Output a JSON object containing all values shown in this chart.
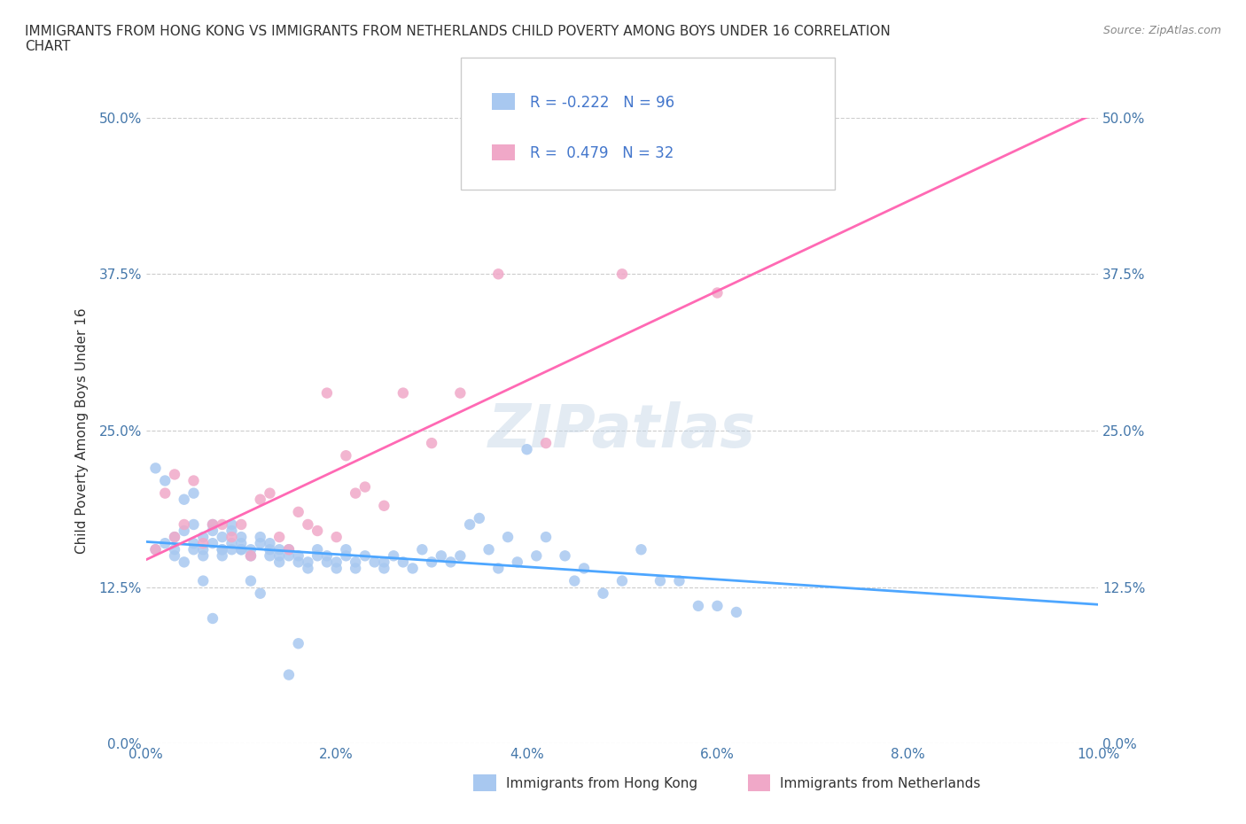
{
  "title": "IMMIGRANTS FROM HONG KONG VS IMMIGRANTS FROM NETHERLANDS CHILD POVERTY AMONG BOYS UNDER 16 CORRELATION\nCHART",
  "source_text": "Source: ZipAtlas.com",
  "ylabel": "Child Poverty Among Boys Under 16",
  "xlabel": "",
  "xlim": [
    0.0,
    0.1
  ],
  "ylim": [
    0.0,
    0.5
  ],
  "yticks": [
    0.0,
    0.125,
    0.25,
    0.375,
    0.5
  ],
  "ytick_labels": [
    "0.0%",
    "12.5%",
    "25.0%",
    "37.5%",
    "50.0%"
  ],
  "xticks": [
    0.0,
    0.02,
    0.04,
    0.06,
    0.08,
    0.1
  ],
  "xtick_labels": [
    "0.0%",
    "2.0%",
    "4.0%",
    "6.0%",
    "8.0%",
    "10.0%"
  ],
  "hk_color": "#a8c8f0",
  "nl_color": "#f0a8c8",
  "hk_line_color": "#4da6ff",
  "nl_line_color": "#ff69b4",
  "hk_r": -0.222,
  "hk_n": 96,
  "nl_r": 0.479,
  "nl_n": 32,
  "watermark": "ZIPatlas",
  "legend_hk": "Immigrants from Hong Kong",
  "legend_nl": "Immigrants from Netherlands",
  "hk_scatter_x": [
    0.001,
    0.002,
    0.003,
    0.003,
    0.004,
    0.004,
    0.005,
    0.005,
    0.005,
    0.006,
    0.006,
    0.006,
    0.007,
    0.007,
    0.007,
    0.008,
    0.008,
    0.008,
    0.009,
    0.009,
    0.009,
    0.01,
    0.01,
    0.01,
    0.011,
    0.011,
    0.012,
    0.012,
    0.013,
    0.013,
    0.014,
    0.014,
    0.015,
    0.015,
    0.016,
    0.016,
    0.017,
    0.017,
    0.018,
    0.018,
    0.019,
    0.019,
    0.02,
    0.02,
    0.021,
    0.021,
    0.022,
    0.022,
    0.023,
    0.024,
    0.025,
    0.025,
    0.026,
    0.027,
    0.028,
    0.029,
    0.03,
    0.031,
    0.032,
    0.033,
    0.034,
    0.035,
    0.036,
    0.037,
    0.038,
    0.039,
    0.04,
    0.041,
    0.042,
    0.044,
    0.045,
    0.046,
    0.048,
    0.05,
    0.052,
    0.054,
    0.056,
    0.058,
    0.06,
    0.062,
    0.001,
    0.002,
    0.003,
    0.004,
    0.005,
    0.006,
    0.007,
    0.008,
    0.009,
    0.01,
    0.011,
    0.012,
    0.013,
    0.014,
    0.015,
    0.016
  ],
  "hk_scatter_y": [
    0.155,
    0.16,
    0.15,
    0.165,
    0.145,
    0.17,
    0.155,
    0.16,
    0.175,
    0.15,
    0.165,
    0.155,
    0.16,
    0.17,
    0.175,
    0.15,
    0.165,
    0.155,
    0.16,
    0.17,
    0.175,
    0.155,
    0.16,
    0.165,
    0.15,
    0.155,
    0.16,
    0.165,
    0.155,
    0.16,
    0.155,
    0.15,
    0.155,
    0.15,
    0.145,
    0.15,
    0.145,
    0.14,
    0.155,
    0.15,
    0.145,
    0.15,
    0.14,
    0.145,
    0.15,
    0.155,
    0.145,
    0.14,
    0.15,
    0.145,
    0.14,
    0.145,
    0.15,
    0.145,
    0.14,
    0.155,
    0.145,
    0.15,
    0.145,
    0.15,
    0.175,
    0.18,
    0.155,
    0.14,
    0.165,
    0.145,
    0.235,
    0.15,
    0.165,
    0.15,
    0.13,
    0.14,
    0.12,
    0.13,
    0.155,
    0.13,
    0.13,
    0.11,
    0.11,
    0.105,
    0.22,
    0.21,
    0.155,
    0.195,
    0.2,
    0.13,
    0.1,
    0.155,
    0.155,
    0.155,
    0.13,
    0.12,
    0.15,
    0.145,
    0.055,
    0.08
  ],
  "nl_scatter_x": [
    0.001,
    0.002,
    0.003,
    0.003,
    0.004,
    0.005,
    0.006,
    0.007,
    0.008,
    0.009,
    0.01,
    0.011,
    0.012,
    0.013,
    0.014,
    0.015,
    0.016,
    0.017,
    0.018,
    0.019,
    0.02,
    0.021,
    0.022,
    0.023,
    0.025,
    0.027,
    0.03,
    0.033,
    0.037,
    0.042,
    0.05,
    0.06
  ],
  "nl_scatter_y": [
    0.155,
    0.2,
    0.165,
    0.215,
    0.175,
    0.21,
    0.16,
    0.175,
    0.175,
    0.165,
    0.175,
    0.15,
    0.195,
    0.2,
    0.165,
    0.155,
    0.185,
    0.175,
    0.17,
    0.28,
    0.165,
    0.23,
    0.2,
    0.205,
    0.19,
    0.28,
    0.24,
    0.28,
    0.375,
    0.24,
    0.375,
    0.36
  ]
}
